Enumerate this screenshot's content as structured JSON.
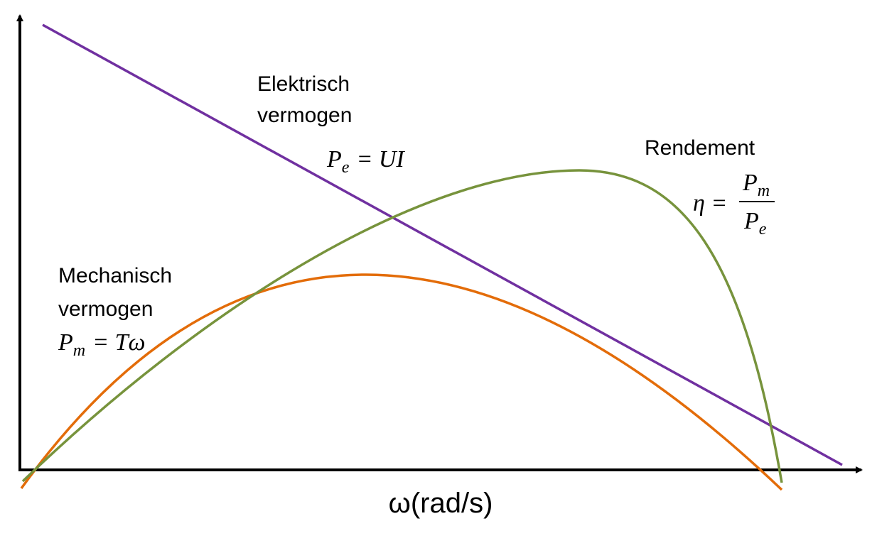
{
  "labels": {
    "electric": {
      "lines": [
        "Elektrisch",
        "vermogen"
      ],
      "formula": {
        "base": "P",
        "sub": "e",
        "rhs": "= UI"
      }
    },
    "efficiency": {
      "lines": [
        "Rendement"
      ],
      "formula": {
        "lhs": "η =",
        "num_base": "P",
        "num_sub": "m",
        "den_base": "P",
        "den_sub": "e"
      }
    },
    "mechanical": {
      "lines": [
        "Mechanisch",
        "vermogen"
      ],
      "formula": {
        "base": "P",
        "sub": "m",
        "rhs": "= Tω"
      }
    },
    "x_axis": "ω(rad/s)"
  }
}
